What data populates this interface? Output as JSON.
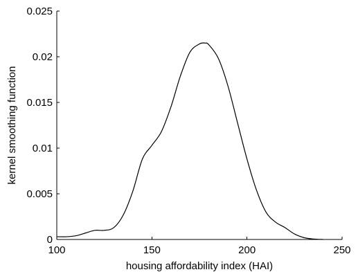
{
  "chart_data": {
    "type": "line",
    "title": "",
    "xlabel": "housing affordability index (HAI)",
    "ylabel": "kernel smoothing function",
    "xlim": [
      100,
      250
    ],
    "ylim": [
      0,
      0.025
    ],
    "x_ticks": [
      100,
      150,
      200,
      250
    ],
    "x_tick_labels": [
      "100",
      "150",
      "200",
      "250"
    ],
    "y_ticks": [
      0,
      0.005,
      0.01,
      0.015,
      0.02,
      0.025
    ],
    "y_tick_labels": [
      "0",
      "0.005",
      "0.01",
      "0.015",
      "0.02",
      "0.025"
    ],
    "grid": false,
    "legend": false,
    "series": [
      {
        "color": "#000000",
        "x": [
          100,
          105,
          110,
          115,
          120,
          125,
          130,
          135,
          140,
          145,
          150,
          155,
          160,
          165,
          170,
          175,
          178,
          180,
          185,
          190,
          195,
          200,
          205,
          210,
          215,
          220,
          225,
          230,
          235,
          240
        ],
        "y": [
          0.0003,
          0.0003,
          0.0004,
          0.0007,
          0.001,
          0.001,
          0.0013,
          0.0027,
          0.0053,
          0.0088,
          0.0103,
          0.0118,
          0.0145,
          0.0179,
          0.0205,
          0.0214,
          0.0215,
          0.0213,
          0.0198,
          0.0168,
          0.0128,
          0.0088,
          0.0054,
          0.003,
          0.0019,
          0.0013,
          0.0006,
          0.0002,
          5e-05,
          0.0
        ]
      }
    ]
  }
}
